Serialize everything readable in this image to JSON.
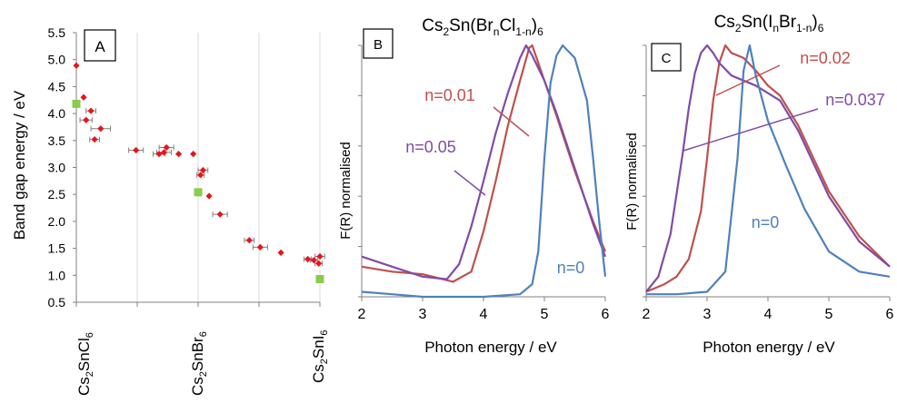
{
  "panel_a": {
    "label": "A",
    "ylabel": "Band gap energy / eV",
    "x_compounds": [
      {
        "base": "Cs",
        "s1": "2",
        "mid": "SnCl",
        "s2": "6"
      },
      {
        "base": "Cs",
        "s1": "2",
        "mid": "SnBr",
        "s2": "6"
      },
      {
        "base": "Cs",
        "s1": "2",
        "mid": "SnI",
        "s2": "6"
      }
    ]
  },
  "panel_b": {
    "label": "B",
    "title": {
      "p1": "Cs",
      "s1": "2",
      "p2": "Sn(Br",
      "s2": "n",
      "p3": "Cl",
      "s3": "1-n",
      "p4": ")",
      "s4": "6"
    },
    "xlabel": "Photon energy / eV",
    "ylabel": "F(R) normalised",
    "annotations": [
      "n=0.01",
      "n=0.05",
      "n=0"
    ]
  },
  "panel_c": {
    "label": "C",
    "title": {
      "p1": "Cs",
      "s1": "2",
      "p2": "Sn(I",
      "s2": "n",
      "p3": "Br",
      "s3": "1-n",
      "p4": ")",
      "s4": "6"
    },
    "xlabel": "Photon energy / eV",
    "ylabel": "F(R) normalised",
    "annotations": [
      "n=0.02",
      "n=0.037",
      "n=0"
    ]
  },
  "chart_data": [
    {
      "type": "scatter",
      "ylabel": "Band gap energy / eV",
      "xlim": [
        0,
        1
      ],
      "ylim": [
        0.5,
        5.5
      ],
      "yticks": [
        0.5,
        1.0,
        1.5,
        2.0,
        2.5,
        3.0,
        3.5,
        4.0,
        4.5,
        5.0,
        5.5
      ],
      "x_categories": [
        "Cs2SnCl6",
        "Cs2SnBr6",
        "Cs2SnI6"
      ],
      "x_category_positions": [
        0,
        0.5,
        1
      ],
      "grid": "vertical",
      "series": [
        {
          "color": "#e8141c",
          "marker": "diamond",
          "points": [
            {
              "x": 0.0,
              "y": 4.89,
              "xerr": 0
            },
            {
              "x": 0.03,
              "y": 4.3,
              "xerr": 0
            },
            {
              "x": 0.06,
              "y": 4.05,
              "xerr": 0.02
            },
            {
              "x": 0.04,
              "y": 3.88,
              "xerr": 0.025
            },
            {
              "x": 0.1,
              "y": 3.72,
              "xerr": 0.04
            },
            {
              "x": 0.075,
              "y": 3.52,
              "xerr": 0.02
            },
            {
              "x": 0.245,
              "y": 3.32,
              "xerr": 0.03
            },
            {
              "x": 0.34,
              "y": 3.25,
              "xerr": 0.025
            },
            {
              "x": 0.36,
              "y": 3.28,
              "xerr": 0.03
            },
            {
              "x": 0.37,
              "y": 3.37,
              "xerr": 0.03
            },
            {
              "x": 0.42,
              "y": 3.25,
              "xerr": 0
            },
            {
              "x": 0.48,
              "y": 3.25,
              "xerr": 0
            },
            {
              "x": 0.52,
              "y": 2.95,
              "xerr": 0.02
            },
            {
              "x": 0.51,
              "y": 2.86,
              "xerr": 0.015
            },
            {
              "x": 0.545,
              "y": 2.47,
              "xerr": 0
            },
            {
              "x": 0.59,
              "y": 2.13,
              "xerr": 0.03
            },
            {
              "x": 0.71,
              "y": 1.65,
              "xerr": 0.02
            },
            {
              "x": 0.755,
              "y": 1.52,
              "xerr": 0.03
            },
            {
              "x": 0.84,
              "y": 1.42,
              "xerr": 0
            },
            {
              "x": 0.95,
              "y": 1.3,
              "xerr": 0.015
            },
            {
              "x": 0.975,
              "y": 1.28,
              "xerr": 0.015
            },
            {
              "x": 0.995,
              "y": 1.22,
              "xerr": 0.015
            },
            {
              "x": 1.0,
              "y": 1.35,
              "xerr": 0.02
            }
          ]
        },
        {
          "color": "#8bcb4b",
          "marker": "square",
          "points": [
            {
              "x": 0.0,
              "y": 4.18,
              "xerr": 0
            },
            {
              "x": 0.5,
              "y": 2.54,
              "xerr": 0
            },
            {
              "x": 1.0,
              "y": 0.93,
              "xerr": 0
            }
          ]
        }
      ]
    },
    {
      "type": "line",
      "title": "Cs2Sn(BrnCl1-n)6",
      "xlabel": "Photon energy / eV",
      "ylabel": "F(R) normalised",
      "xlim": [
        2,
        6
      ],
      "ylim": [
        0,
        1
      ],
      "xticks": [
        2,
        3,
        4,
        5,
        6
      ],
      "series": [
        {
          "name": "n=0.01",
          "color": "#c0504d",
          "x": [
            2.0,
            2.5,
            3.0,
            3.5,
            3.8,
            4.0,
            4.2,
            4.4,
            4.6,
            4.75,
            4.8,
            4.9,
            5.0,
            5.2,
            5.5,
            5.8,
            6.0
          ],
          "y": [
            0.12,
            0.1,
            0.09,
            0.06,
            0.1,
            0.26,
            0.46,
            0.68,
            0.86,
            0.99,
            1.0,
            0.93,
            0.86,
            0.72,
            0.5,
            0.3,
            0.18
          ]
        },
        {
          "name": "n=0.05",
          "color": "#7f4ca6",
          "x": [
            2.0,
            2.5,
            3.0,
            3.4,
            3.6,
            3.8,
            4.0,
            4.2,
            4.4,
            4.6,
            4.7,
            4.8,
            5.0,
            5.2,
            5.5,
            5.8,
            6.0
          ],
          "y": [
            0.16,
            0.12,
            0.08,
            0.07,
            0.13,
            0.28,
            0.46,
            0.65,
            0.81,
            0.95,
            1.0,
            0.96,
            0.86,
            0.73,
            0.51,
            0.29,
            0.16
          ]
        },
        {
          "name": "n=0",
          "color": "#4f81bd",
          "x": [
            2.0,
            2.5,
            3.0,
            3.5,
            4.0,
            4.6,
            4.8,
            4.9,
            5.0,
            5.1,
            5.2,
            5.3,
            5.5,
            5.7,
            5.8,
            5.9,
            6.0
          ],
          "y": [
            0.02,
            0.01,
            0.0,
            0.0,
            0.0,
            0.01,
            0.05,
            0.18,
            0.55,
            0.85,
            0.96,
            1.0,
            0.95,
            0.78,
            0.55,
            0.3,
            0.08
          ]
        }
      ]
    },
    {
      "type": "line",
      "title": "Cs2Sn(InBr1-n)6",
      "xlabel": "Photon energy / eV",
      "ylabel": "F(R) normalised",
      "xlim": [
        2,
        6
      ],
      "ylim": [
        0,
        1
      ],
      "xticks": [
        2,
        3,
        4,
        5,
        6
      ],
      "series": [
        {
          "name": "n=0.02",
          "color": "#c0504d",
          "x": [
            2.0,
            2.3,
            2.5,
            2.7,
            2.9,
            3.0,
            3.1,
            3.2,
            3.3,
            3.4,
            3.6,
            3.8,
            4.0,
            4.2,
            4.5,
            5.0,
            5.5,
            6.0
          ],
          "y": [
            0.02,
            0.05,
            0.08,
            0.15,
            0.34,
            0.55,
            0.78,
            0.93,
            1.0,
            0.97,
            0.95,
            0.9,
            0.84,
            0.8,
            0.68,
            0.42,
            0.24,
            0.12
          ]
        },
        {
          "name": "n=0.037",
          "color": "#7f4ca6",
          "x": [
            2.0,
            2.2,
            2.4,
            2.5,
            2.6,
            2.7,
            2.8,
            2.9,
            3.0,
            3.1,
            3.2,
            3.4,
            3.6,
            3.8,
            4.0,
            4.2,
            4.5,
            5.0,
            5.5,
            6.0
          ],
          "y": [
            0.02,
            0.08,
            0.25,
            0.41,
            0.57,
            0.75,
            0.89,
            0.97,
            1.0,
            0.97,
            0.93,
            0.88,
            0.86,
            0.84,
            0.81,
            0.78,
            0.66,
            0.4,
            0.22,
            0.12
          ]
        },
        {
          "name": "n=0",
          "color": "#4f81bd",
          "x": [
            2.0,
            2.5,
            3.0,
            3.3,
            3.5,
            3.6,
            3.7,
            3.8,
            4.0,
            4.3,
            4.6,
            5.0,
            5.5,
            6.0
          ],
          "y": [
            0.01,
            0.01,
            0.02,
            0.1,
            0.55,
            0.9,
            1.0,
            0.88,
            0.7,
            0.52,
            0.35,
            0.18,
            0.1,
            0.08
          ]
        }
      ]
    }
  ]
}
